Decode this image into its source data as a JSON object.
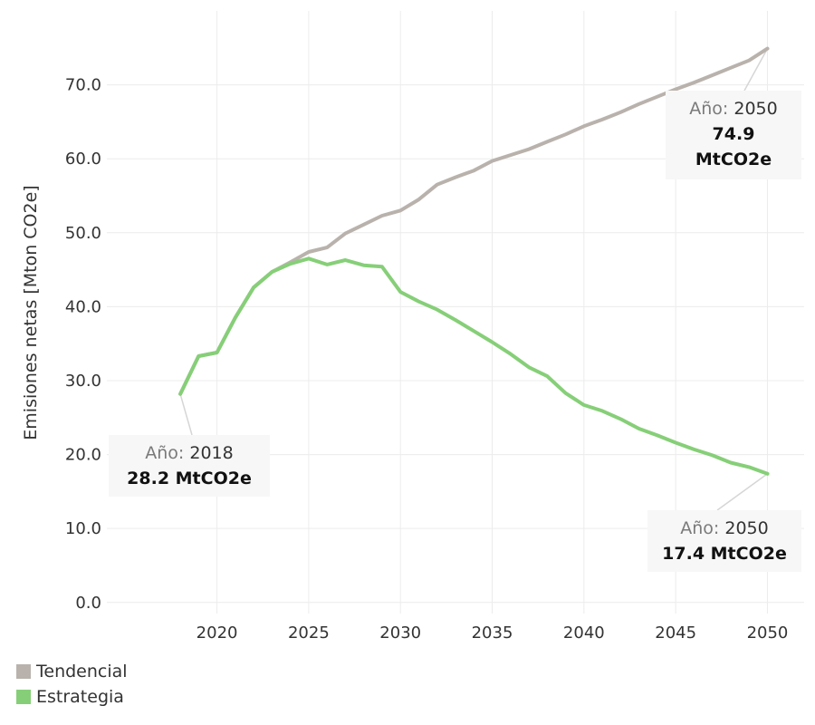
{
  "chart_data": {
    "type": "line",
    "ylabel": "Emisiones netas [Mton CO2e]",
    "xlabel": "",
    "x_ticks": [
      2020,
      2025,
      2030,
      2035,
      2040,
      2045,
      2050
    ],
    "y_ticks": [
      0,
      10,
      20,
      30,
      40,
      50,
      60,
      70
    ],
    "y_tick_labels": [
      "0.0",
      "10.0",
      "20.0",
      "30.0",
      "40.0",
      "50.0",
      "60.0",
      "70.0"
    ],
    "xlim": [
      2014,
      2052
    ],
    "ylim": [
      -1.5,
      80
    ],
    "grid": true,
    "legend_position": "bottom-left",
    "series": [
      {
        "name": "Tendencial",
        "color": "#b9b2ac",
        "x": [
          2018,
          2019,
          2020,
          2021,
          2022,
          2023,
          2024,
          2025,
          2026,
          2027,
          2028,
          2029,
          2030,
          2031,
          2032,
          2033,
          2034,
          2035,
          2036,
          2037,
          2038,
          2039,
          2040,
          2041,
          2042,
          2043,
          2044,
          2045,
          2046,
          2047,
          2048,
          2049,
          2050
        ],
        "y": [
          28.2,
          33.3,
          33.8,
          38.5,
          42.6,
          44.7,
          46.0,
          47.4,
          48.0,
          49.9,
          51.1,
          52.3,
          53.0,
          54.5,
          56.5,
          57.5,
          58.4,
          59.7,
          60.5,
          61.3,
          62.3,
          63.3,
          64.4,
          65.3,
          66.3,
          67.4,
          68.4,
          69.4,
          70.3,
          71.3,
          72.3,
          73.3,
          74.9
        ]
      },
      {
        "name": "Estrategia",
        "color": "#86cf78",
        "x": [
          2018,
          2019,
          2020,
          2021,
          2022,
          2023,
          2024,
          2025,
          2026,
          2027,
          2028,
          2029,
          2030,
          2031,
          2032,
          2033,
          2034,
          2035,
          2036,
          2037,
          2038,
          2039,
          2040,
          2041,
          2042,
          2043,
          2044,
          2045,
          2046,
          2047,
          2048,
          2049,
          2050
        ],
        "y": [
          28.2,
          33.3,
          33.8,
          38.5,
          42.6,
          44.7,
          45.8,
          46.5,
          45.7,
          46.3,
          45.6,
          45.4,
          42.0,
          40.7,
          39.6,
          38.2,
          36.7,
          35.2,
          33.6,
          31.8,
          30.6,
          28.3,
          26.7,
          25.9,
          24.8,
          23.5,
          22.6,
          21.6,
          20.7,
          19.9,
          18.9,
          18.3,
          17.4
        ]
      }
    ],
    "annotations": [
      {
        "label": "Año:",
        "year": "2018",
        "value": "28.2 MtCO2e",
        "series": "Estrategia",
        "x": 2018,
        "y": 28.2
      },
      {
        "label": "Año:",
        "year": "2050",
        "value_line1": "74.9",
        "value_line2": "MtCO2e",
        "series": "Tendencial",
        "x": 2050,
        "y": 74.9
      },
      {
        "label": "Año:",
        "year": "2050",
        "value": "17.4 MtCO2e",
        "series": "Estrategia",
        "x": 2050,
        "y": 17.4
      }
    ]
  },
  "legend": {
    "items": [
      {
        "label": "Tendencial",
        "color": "#b9b2ac"
      },
      {
        "label": "Estrategia",
        "color": "#86cf78"
      }
    ]
  }
}
